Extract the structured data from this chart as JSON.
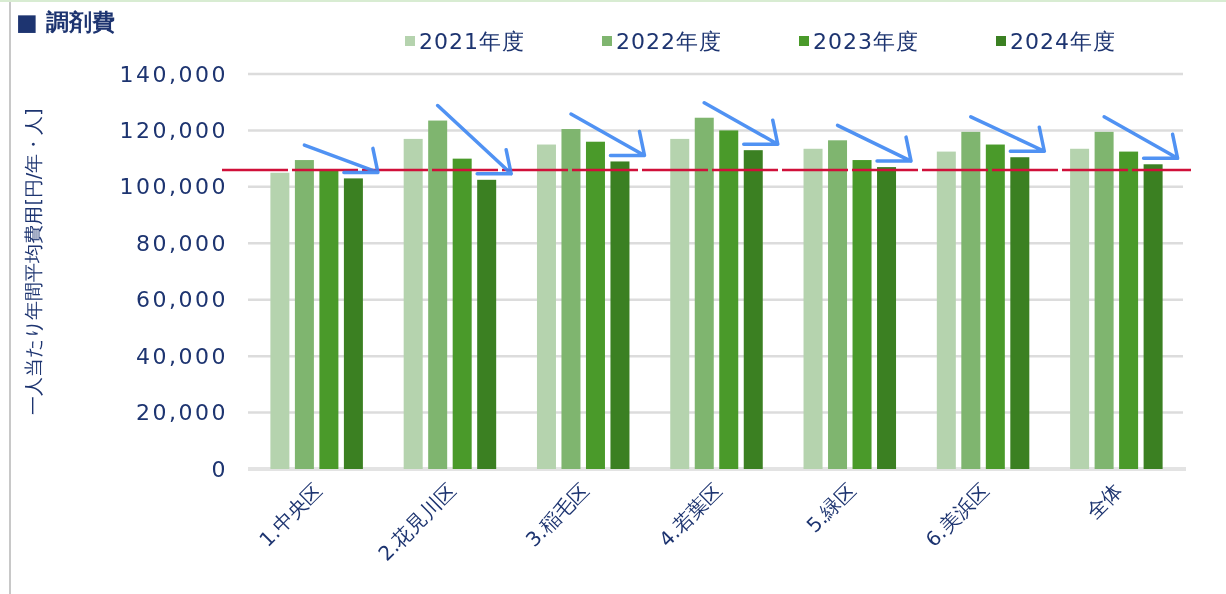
{
  "chart_data": {
    "type": "bar",
    "title": "■ 調剤費",
    "ylabel": "一人当たり年間平均費用[円/年・人]",
    "categories": [
      "1.中央区",
      "2.花見川区",
      "3.稲毛区",
      "4.若葉区",
      "5.緑区",
      "6.美浜区",
      "全体"
    ],
    "series": [
      {
        "name": "2021年度",
        "color": "#b5d3ae",
        "values": [
          105000,
          117000,
          115000,
          117000,
          113500,
          112500,
          113500
        ]
      },
      {
        "name": "2022年度",
        "color": "#7fb56f",
        "values": [
          109500,
          123500,
          120500,
          124500,
          116500,
          119500,
          119500
        ]
      },
      {
        "name": "2023年度",
        "color": "#4a9a2a",
        "values": [
          106000,
          110000,
          116000,
          120000,
          109500,
          115000,
          112500
        ]
      },
      {
        "name": "2024年度",
        "color": "#3b8022",
        "values": [
          103000,
          102500,
          109000,
          113000,
          107000,
          110500,
          108000
        ]
      }
    ],
    "ylim": [
      0,
      140000
    ],
    "yticks": [
      0,
      {
        "value": 20000,
        "label": "20,000"
      },
      {
        "value": 40000,
        "label": "40,000"
      },
      {
        "value": 60000,
        "label": "60,000"
      },
      {
        "value": 80000,
        "label": "80,000"
      },
      {
        "value": 100000,
        "label": "100,000"
      },
      {
        "value": 120000,
        "label": "120,000"
      },
      {
        "value": 140000,
        "label": "140,000"
      }
    ],
    "grid": "y",
    "legend": "top",
    "ref_lines": [
      {
        "axis": "y",
        "value": 106000,
        "color": "#d0103a",
        "line_style": "dashed"
      }
    ]
  }
}
